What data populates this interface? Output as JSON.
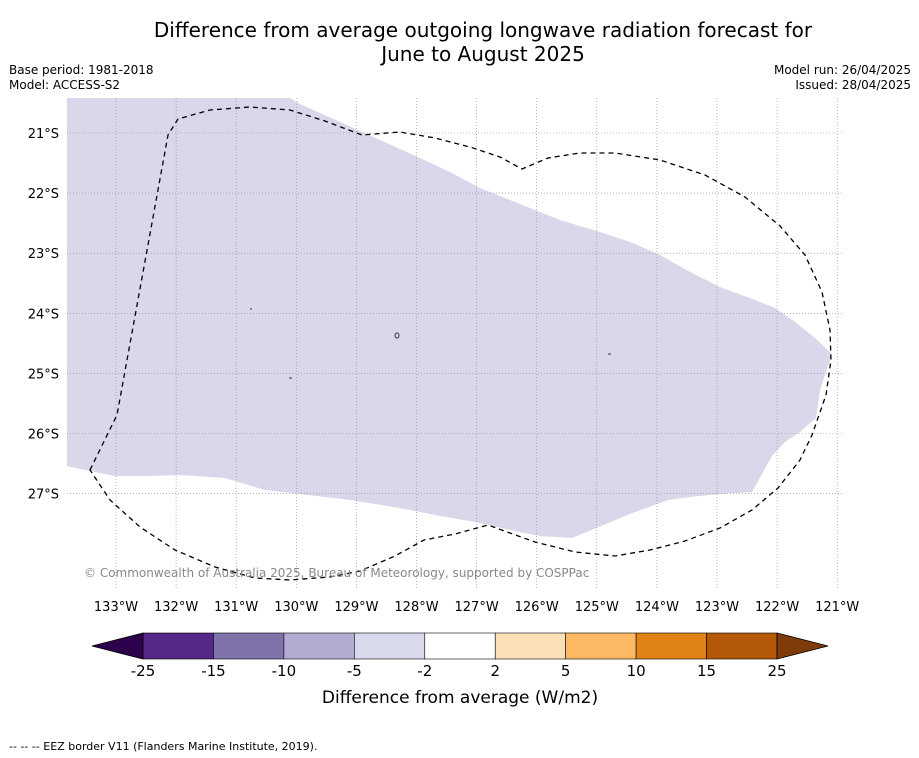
{
  "title_line1": "Difference from average outgoing longwave radiation forecast for",
  "title_line2": "June to August 2025",
  "meta_left": {
    "base_period": "Base period: 1981-2018",
    "model": "Model: ACCESS-S2"
  },
  "meta_right": {
    "model_run": "Model run: 26/04/2025",
    "issued": "Issued: 28/04/2025"
  },
  "copyright": "© Commonwealth of Australia 2025, Bureau of Meteorology, supported by COSPPac",
  "map": {
    "lon_ticks": [
      {
        "value": -133,
        "label": "133°W"
      },
      {
        "value": -132,
        "label": "132°W"
      },
      {
        "value": -131,
        "label": "131°W"
      },
      {
        "value": -130,
        "label": "130°W"
      },
      {
        "value": -129,
        "label": "129°W"
      },
      {
        "value": -128,
        "label": "128°W"
      },
      {
        "value": -127,
        "label": "127°W"
      },
      {
        "value": -126,
        "label": "126°W"
      },
      {
        "value": -125,
        "label": "125°W"
      },
      {
        "value": -124,
        "label": "124°W"
      },
      {
        "value": -123,
        "label": "123°W"
      },
      {
        "value": -122,
        "label": "122°W"
      },
      {
        "value": -121,
        "label": "121°W"
      }
    ],
    "lat_ticks": [
      {
        "value": -21,
        "label": "21°S"
      },
      {
        "value": -22,
        "label": "22°S"
      },
      {
        "value": -23,
        "label": "23°S"
      },
      {
        "value": -24,
        "label": "24°S"
      },
      {
        "value": -25,
        "label": "25°S"
      },
      {
        "value": -26,
        "label": "26°S"
      },
      {
        "value": -27,
        "label": "27°S"
      }
    ],
    "field_category": "-5 to -2",
    "field_color": "#d8d8ea",
    "eez_line_color": "#000000"
  },
  "colorbar": {
    "label": "Difference from average (W/m2)",
    "ticks": [
      "-25",
      "-15",
      "-10",
      "-5",
      "-2",
      "2",
      "5",
      "10",
      "15",
      "25"
    ],
    "under_color": "#2d004b",
    "over_color": "#7f3b08",
    "colors": [
      "#542788",
      "#8073ac",
      "#b2abd2",
      "#d8daeb",
      "#ffffff",
      "#fee0b6",
      "#fdb863",
      "#e08214",
      "#b35806"
    ]
  },
  "footnote": "--  --  -- EEZ border V11 (Flanders Marine Institute, 2019)."
}
